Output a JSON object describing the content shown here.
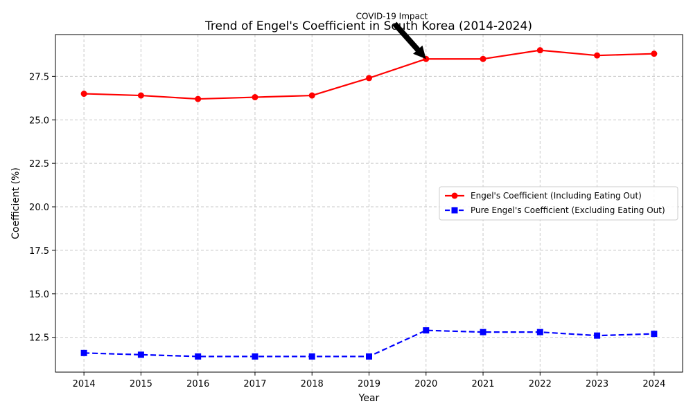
{
  "chart_data": {
    "type": "line",
    "title": "Trend of Engel's Coefficient in South Korea (2014-2024)",
    "xlabel": "Year",
    "ylabel": "Coefficient (%)",
    "x": [
      2014,
      2015,
      2016,
      2017,
      2018,
      2019,
      2020,
      2021,
      2022,
      2023,
      2024
    ],
    "x_tick_labels": [
      "2014",
      "2015",
      "2016",
      "2017",
      "2018",
      "2019",
      "2020",
      "2021",
      "2022",
      "2023",
      "2024"
    ],
    "xlim": [
      2013.5,
      2024.5
    ],
    "ylim": [
      10.5,
      29.9
    ],
    "y_ticks": [
      12.5,
      15.0,
      17.5,
      20.0,
      22.5,
      25.0,
      27.5
    ],
    "y_tick_labels": [
      "12.5",
      "15.0",
      "17.5",
      "20.0",
      "22.5",
      "25.0",
      "27.5"
    ],
    "grid": true,
    "legend_position": "center-right",
    "series": [
      {
        "name": "Engel's Coefficient (Including Eating Out)",
        "values": [
          26.5,
          26.4,
          26.2,
          26.3,
          26.4,
          27.4,
          28.5,
          28.5,
          29.0,
          28.7,
          28.8
        ],
        "color": "#ff0000",
        "line_style": "solid",
        "marker": "circle"
      },
      {
        "name": "Pure Engel's Coefficient (Excluding Eating Out)",
        "values": [
          11.6,
          11.5,
          11.4,
          11.4,
          11.4,
          11.4,
          12.9,
          12.8,
          12.8,
          12.6,
          12.7
        ],
        "color": "#0000ff",
        "line_style": "dashed",
        "marker": "square"
      }
    ],
    "annotations": [
      {
        "text": "COVID-19 Impact",
        "target_x": 2020,
        "target_y": 28.5,
        "text_x": 2019.4,
        "text_y": 31.0
      }
    ]
  }
}
